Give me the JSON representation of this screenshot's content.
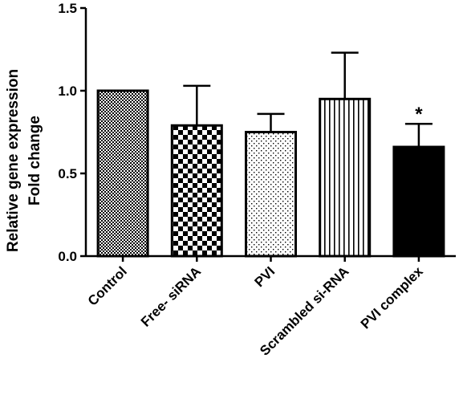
{
  "chart_data": {
    "type": "bar",
    "title": "",
    "xlabel": "",
    "ylabel_lines": [
      "Relative gene expression",
      "Fold change"
    ],
    "ylim": [
      0,
      1.5
    ],
    "yticks": [
      "0.0",
      "0.5",
      "1.0",
      "1.5"
    ],
    "ytick_values": [
      0,
      0.5,
      1.0,
      1.5
    ],
    "categories": [
      "Control",
      "Free- siRNA",
      "PVI",
      "Scrambled si-RNA",
      "PVI complex"
    ],
    "values": [
      1.0,
      0.79,
      0.75,
      0.95,
      0.66
    ],
    "error_upper": [
      0,
      0.24,
      0.11,
      0.28,
      0.14
    ],
    "fills": [
      "fine-checker",
      "checker",
      "dots",
      "vertical-lines",
      "solid"
    ],
    "annotations": [
      {
        "category": "PVI complex",
        "text": "*"
      }
    ],
    "grid": false,
    "colors": {
      "stroke": "#000000",
      "background": "#ffffff"
    }
  }
}
